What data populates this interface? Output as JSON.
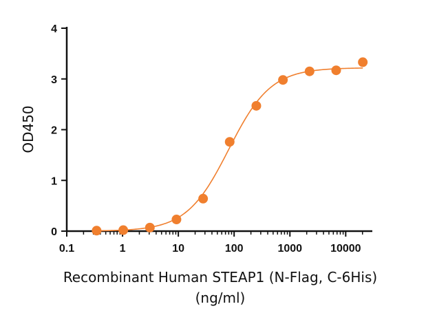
{
  "chart_data": {
    "type": "scatter",
    "title": "",
    "xlabel": "Recombinant Human STEAP1 (N-Flag, C-6His)",
    "xlabel_unit": "(ng/ml)",
    "ylabel": "OD450",
    "xscale": "log",
    "xlim": [
      0.1,
      30000
    ],
    "ylim": [
      0,
      4
    ],
    "x_ticks": [
      0.1,
      1,
      10,
      100,
      1000,
      10000
    ],
    "x_tick_labels": [
      "0.1",
      "1",
      "10",
      "100",
      "1000",
      "10000"
    ],
    "y_ticks": [
      0,
      1,
      2,
      3,
      4
    ],
    "y_tick_labels": [
      "0",
      "1",
      "2",
      "3",
      "4"
    ],
    "grid": false,
    "legend": "none",
    "series": [
      {
        "color": "#F07F2E",
        "fit": "four-parameter logistic curve",
        "x": [
          0.343,
          1.03,
          3.09,
          9.26,
          27.8,
          83.3,
          250,
          750,
          2250,
          6750,
          20250
        ],
        "y": [
          0.01,
          0.02,
          0.07,
          0.23,
          0.64,
          1.76,
          2.47,
          2.98,
          3.15,
          3.17,
          3.33
        ]
      }
    ]
  }
}
